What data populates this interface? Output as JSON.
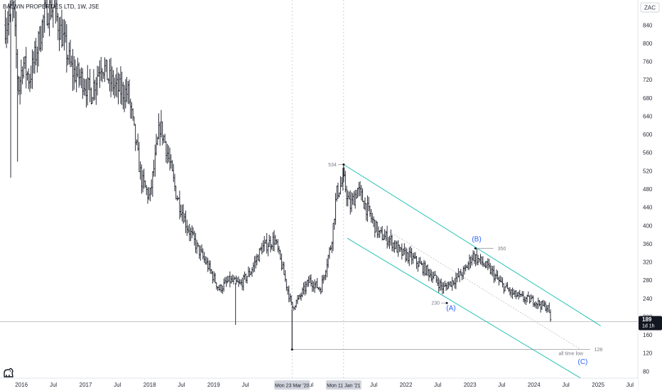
{
  "header": {
    "title": "BALWIN PROPERTIES LTD, 1W, JSE",
    "currency": "ZAC"
  },
  "price_tag": {
    "price": "189",
    "countdown": "1d 1h"
  },
  "colors": {
    "bar": "#131722",
    "channel": "#22c1b5",
    "wave_label": "#2962ff",
    "annotation": "#787b86",
    "grid": "#e0e3eb"
  },
  "icons": [
    "tradingview-logo-icon"
  ],
  "chart_data": {
    "type": "bar",
    "interval": "1W",
    "ylim": [
      65,
      895
    ],
    "xlim": [
      "2015-09-01",
      "2025-08-15"
    ],
    "y_ticks": [
      80,
      120,
      160,
      200,
      240,
      280,
      320,
      360,
      400,
      440,
      480,
      520,
      560,
      600,
      640,
      680,
      720,
      760,
      800,
      840,
      880
    ],
    "x_ticks": [
      {
        "label": "2016",
        "date": "2016-01-01"
      },
      {
        "label": "Jul",
        "date": "2016-07-01"
      },
      {
        "label": "2017",
        "date": "2017-01-01"
      },
      {
        "label": "Jul",
        "date": "2017-07-01"
      },
      {
        "label": "2018",
        "date": "2018-01-01"
      },
      {
        "label": "Jul",
        "date": "2018-07-01"
      },
      {
        "label": "2019",
        "date": "2019-01-01"
      },
      {
        "label": "Jul",
        "date": "2019-07-01"
      },
      {
        "label": "Jul",
        "date": "2020-07-01"
      },
      {
        "label": "Jul",
        "date": "2021-07-01"
      },
      {
        "label": "2022",
        "date": "2022-01-01"
      },
      {
        "label": "Jul",
        "date": "2022-07-01"
      },
      {
        "label": "2023",
        "date": "2023-01-01"
      },
      {
        "label": "Jul",
        "date": "2023-07-01"
      },
      {
        "label": "2024",
        "date": "2024-01-01"
      },
      {
        "label": "Jul",
        "date": "2024-07-01"
      },
      {
        "label": "2025",
        "date": "2025-01-01"
      },
      {
        "label": "Jul",
        "date": "2025-07-01"
      }
    ],
    "x_badges": [
      {
        "label": "Mon 23 Mar '20",
        "date": "2020-03-23"
      },
      {
        "label": "Mon 11 Jan '21",
        "date": "2021-01-11"
      }
    ],
    "price_path": [
      [
        "2015-10-01",
        840
      ],
      [
        "2015-11-15",
        880
      ],
      [
        "2015-12-15",
        700
      ],
      [
        "2016-01-10",
        760
      ],
      [
        "2016-02-15",
        720
      ],
      [
        "2016-04-01",
        790
      ],
      [
        "2016-05-15",
        870
      ],
      [
        "2016-07-01",
        880
      ],
      [
        "2016-09-01",
        800
      ],
      [
        "2016-10-15",
        740
      ],
      [
        "2016-12-15",
        720
      ],
      [
        "2017-02-01",
        690
      ],
      [
        "2017-04-01",
        760
      ],
      [
        "2017-05-15",
        720
      ],
      [
        "2017-07-01",
        700
      ],
      [
        "2017-09-01",
        690
      ],
      [
        "2017-11-15",
        500
      ],
      [
        "2018-01-01",
        460
      ],
      [
        "2018-03-01",
        620
      ],
      [
        "2018-04-01",
        580
      ],
      [
        "2018-06-01",
        470
      ],
      [
        "2018-08-01",
        400
      ],
      [
        "2018-10-01",
        350
      ],
      [
        "2018-12-01",
        310
      ],
      [
        "2019-02-01",
        260
      ],
      [
        "2019-04-01",
        280
      ],
      [
        "2019-06-01",
        270
      ],
      [
        "2019-08-01",
        300
      ],
      [
        "2019-10-01",
        350
      ],
      [
        "2019-12-15",
        370
      ],
      [
        "2020-02-01",
        300
      ],
      [
        "2020-03-23",
        220
      ],
      [
        "2020-05-01",
        240
      ],
      [
        "2020-07-01",
        280
      ],
      [
        "2020-09-01",
        260
      ],
      [
        "2020-11-01",
        360
      ],
      [
        "2020-12-01",
        470
      ],
      [
        "2021-01-11",
        500
      ],
      [
        "2021-02-15",
        440
      ],
      [
        "2021-04-01",
        480
      ],
      [
        "2021-06-01",
        430
      ],
      [
        "2021-08-01",
        380
      ],
      [
        "2021-10-01",
        370
      ],
      [
        "2021-12-01",
        340
      ],
      [
        "2022-02-01",
        330
      ],
      [
        "2022-04-01",
        310
      ],
      [
        "2022-06-01",
        290
      ],
      [
        "2022-08-01",
        262
      ],
      [
        "2022-10-01",
        280
      ],
      [
        "2022-12-01",
        300
      ],
      [
        "2023-01-15",
        335
      ],
      [
        "2023-03-01",
        322
      ],
      [
        "2023-05-01",
        300
      ],
      [
        "2023-07-01",
        270
      ],
      [
        "2023-09-01",
        250
      ],
      [
        "2023-11-01",
        240
      ],
      [
        "2024-01-01",
        235
      ],
      [
        "2024-02-15",
        225
      ],
      [
        "2024-03-20",
        220
      ],
      [
        "2024-04-08",
        189
      ]
    ],
    "spikes": [
      {
        "date": "2015-11-01",
        "low": 505
      },
      {
        "date": "2015-12-10",
        "low": 540
      },
      {
        "date": "2019-05-06",
        "low": 182
      },
      {
        "date": "2020-03-23",
        "low": 128
      },
      {
        "date": "2021-01-11",
        "high": 534
      }
    ],
    "channel": {
      "upper": [
        [
          "2021-01-11",
          534
        ],
        [
          "2025-01-15",
          180
        ]
      ],
      "lower": [
        [
          "2021-02-01",
          372
        ],
        [
          "2024-10-15",
          60
        ]
      ],
      "mid": [
        [
          "2021-09-15",
          390
        ],
        [
          "2024-09-15",
          130
        ]
      ]
    },
    "levels": [
      {
        "label": "534",
        "date": "2021-01-11",
        "value": 534,
        "end": "2021-01-11",
        "label_side": "left"
      },
      {
        "label": "350",
        "date": "2023-02-01",
        "value": 350,
        "end": "2023-05-15",
        "label_side": "right"
      },
      {
        "label": "230",
        "date": "2022-08-22",
        "value": 230,
        "end": "2022-08-22",
        "label_side": "left"
      },
      {
        "label": "128",
        "date": "2020-03-23",
        "value": 128,
        "end": "2024-11-15",
        "label_side": "right"
      }
    ],
    "annotations": [
      {
        "text": "all time low",
        "date": "2024-05-20",
        "value": 116
      }
    ],
    "wave_labels": [
      {
        "text": "(A)",
        "date": "2022-09-15",
        "value": 214
      },
      {
        "text": "(B)",
        "date": "2023-02-08",
        "value": 365
      },
      {
        "text": "(C)",
        "date": "2024-10-05",
        "value": 96
      }
    ],
    "current_price": 189
  }
}
